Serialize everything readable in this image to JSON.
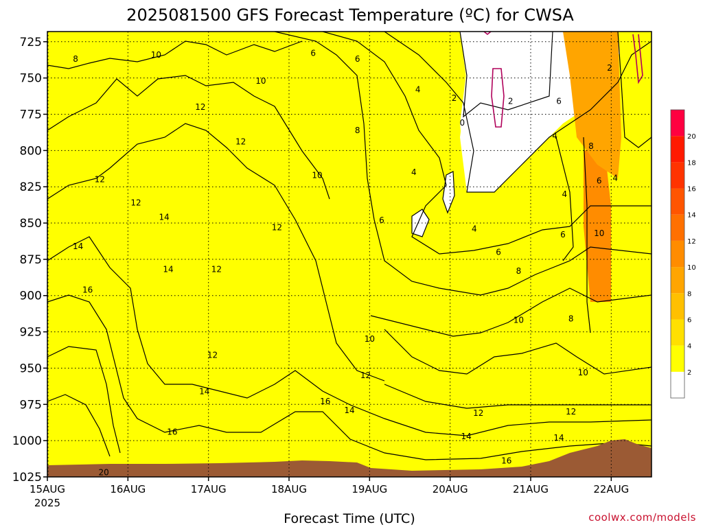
{
  "page": {
    "title": "2025081500 GFS Forecast Temperature (ºC) for CWSA",
    "xlabel": "Forecast Time (UTC)",
    "credit": "coolwx.com/models"
  },
  "chart_data": {
    "type": "heatmap",
    "title": "2025081500 GFS Forecast Temperature (ºC) for CWSA",
    "xlabel": "Forecast Time (UTC)",
    "ylabel": "",
    "x": [
      "15AUG",
      "16AUG",
      "17AUG",
      "18AUG",
      "19AUG",
      "20AUG",
      "21AUG",
      "22AUG"
    ],
    "x_sublabel": "2025",
    "x_days": [
      0,
      1,
      2,
      3,
      4,
      5,
      6,
      7
    ],
    "xlim_days": [
      0,
      7.5
    ],
    "y": [
      725,
      750,
      775,
      800,
      825,
      850,
      875,
      900,
      925,
      950,
      975,
      1000,
      1025
    ],
    "ylim": [
      1025,
      718
    ],
    "y_axis": "pressure (hPa), inverted",
    "grid": true,
    "colorbar": {
      "ticks": [
        2,
        4,
        6,
        8,
        10,
        12,
        14,
        16,
        18,
        20
      ],
      "colors": [
        "#ffffff",
        "#ffff00",
        "#ffe000",
        "#ffc000",
        "#ffa500",
        "#ff8c00",
        "#ff7000",
        "#ff5500",
        "#ff3300",
        "#ff1a00",
        "#ff0040"
      ]
    },
    "ground_color": "#9b5a34",
    "contour_levels": [
      0,
      2,
      4,
      6,
      8,
      10,
      12,
      14,
      16,
      20
    ],
    "contour_labels": [
      {
        "t": 0.35,
        "p": 737,
        "v": "8"
      },
      {
        "t": 1.35,
        "p": 734,
        "v": "10"
      },
      {
        "t": 2.65,
        "p": 752,
        "v": "10"
      },
      {
        "t": 1.9,
        "p": 770,
        "v": "12"
      },
      {
        "t": 2.4,
        "p": 794,
        "v": "12"
      },
      {
        "t": 0.65,
        "p": 820,
        "v": "12"
      },
      {
        "t": 1.1,
        "p": 836,
        "v": "12"
      },
      {
        "t": 1.45,
        "p": 846,
        "v": "14"
      },
      {
        "t": 2.85,
        "p": 853,
        "v": "12"
      },
      {
        "t": 0.38,
        "p": 866,
        "v": "14"
      },
      {
        "t": 1.5,
        "p": 882,
        "v": "14"
      },
      {
        "t": 2.1,
        "p": 882,
        "v": "12"
      },
      {
        "t": 0.5,
        "p": 896,
        "v": "16"
      },
      {
        "t": 2.05,
        "p": 941,
        "v": "12"
      },
      {
        "t": 1.95,
        "p": 966,
        "v": "14"
      },
      {
        "t": 1.55,
        "p": 994,
        "v": "16"
      },
      {
        "t": 0.7,
        "p": 1022,
        "v": "20"
      },
      {
        "t": 3.3,
        "p": 733,
        "v": "6"
      },
      {
        "t": 3.85,
        "p": 737,
        "v": "6"
      },
      {
        "t": 3.85,
        "p": 786,
        "v": "8"
      },
      {
        "t": 3.35,
        "p": 817,
        "v": "10"
      },
      {
        "t": 4.15,
        "p": 848,
        "v": "6"
      },
      {
        "t": 4.6,
        "p": 758,
        "v": "4"
      },
      {
        "t": 4.55,
        "p": 815,
        "v": "4"
      },
      {
        "t": 5.05,
        "p": 764,
        "v": "2"
      },
      {
        "t": 5.15,
        "p": 781,
        "v": "0"
      },
      {
        "t": 5.75,
        "p": 766,
        "v": "2"
      },
      {
        "t": 5.3,
        "p": 854,
        "v": "4"
      },
      {
        "t": 5.6,
        "p": 870,
        "v": "6"
      },
      {
        "t": 5.85,
        "p": 883,
        "v": "8"
      },
      {
        "t": 5.85,
        "p": 917,
        "v": "10"
      },
      {
        "t": 4.0,
        "p": 930,
        "v": "10"
      },
      {
        "t": 3.95,
        "p": 955,
        "v": "12"
      },
      {
        "t": 3.45,
        "p": 973,
        "v": "16"
      },
      {
        "t": 3.75,
        "p": 979,
        "v": "14"
      },
      {
        "t": 5.35,
        "p": 981,
        "v": "12"
      },
      {
        "t": 5.2,
        "p": 997,
        "v": "14"
      },
      {
        "t": 5.7,
        "p": 1014,
        "v": "16"
      },
      {
        "t": 6.35,
        "p": 766,
        "v": "6"
      },
      {
        "t": 6.3,
        "p": 790,
        "v": "4"
      },
      {
        "t": 6.42,
        "p": 830,
        "v": "4"
      },
      {
        "t": 6.75,
        "p": 797,
        "v": "8"
      },
      {
        "t": 6.98,
        "p": 743,
        "v": "2"
      },
      {
        "t": 6.85,
        "p": 821,
        "v": "6"
      },
      {
        "t": 7.05,
        "p": 819,
        "v": "4"
      },
      {
        "t": 6.85,
        "p": 857,
        "v": "10"
      },
      {
        "t": 6.4,
        "p": 858,
        "v": "6"
      },
      {
        "t": 6.5,
        "p": 916,
        "v": "8"
      },
      {
        "t": 6.65,
        "p": 953,
        "v": "10"
      },
      {
        "t": 6.5,
        "p": 980,
        "v": "12"
      },
      {
        "t": 6.35,
        "p": 998,
        "v": "14"
      }
    ]
  }
}
